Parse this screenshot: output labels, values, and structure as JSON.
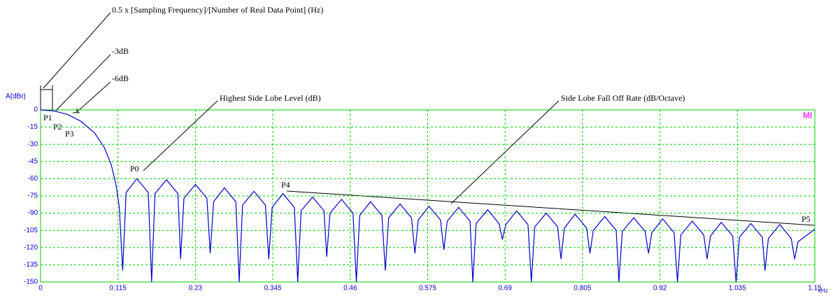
{
  "chart_data": {
    "type": "line",
    "y_label": "A(dBr)",
    "x_label": "kHz",
    "logo": "MI",
    "annotations": [
      "0.5 x [Sampling Frequency]/[Number of Real Data Point]   (Hz)",
      "-3dB",
      "-6dB",
      "Highest Side Lobe Level (dB)",
      "Side Lobe Fall Off Rate (dB/Octave)"
    ],
    "points": [
      "P0",
      "P1",
      "P2",
      "P3",
      "P4",
      "P5"
    ],
    "color": "#0000cc",
    "grid": true,
    "xlim": [
      0,
      1.15
    ],
    "xticks": [
      0,
      0.115,
      0.23,
      0.345,
      0.46,
      0.575,
      0.69,
      0.805,
      0.92,
      1.035,
      1.15
    ],
    "ylim": [
      -150,
      0
    ],
    "yticks": [
      0,
      -15,
      -30,
      -45,
      -60,
      -75,
      -90,
      -105,
      -120,
      -135,
      -150
    ],
    "x": [
      0,
      0.02,
      0.04,
      0.06,
      0.08,
      0.095,
      0.105,
      0.112,
      0.117,
      0.122,
      0.127,
      0.143,
      0.16,
      0.165,
      0.17,
      0.187,
      0.204,
      0.208,
      0.213,
      0.23,
      0.247,
      0.252,
      0.257,
      0.273,
      0.29,
      0.295,
      0.3,
      0.317,
      0.334,
      0.339,
      0.344,
      0.36,
      0.377,
      0.382,
      0.387,
      0.404,
      0.421,
      0.425,
      0.43,
      0.447,
      0.464,
      0.469,
      0.474,
      0.49,
      0.507,
      0.512,
      0.517,
      0.534,
      0.551,
      0.556,
      0.561,
      0.577,
      0.594,
      0.599,
      0.604,
      0.621,
      0.638,
      0.642,
      0.647,
      0.664,
      0.681,
      0.686,
      0.691,
      0.707,
      0.724,
      0.729,
      0.734,
      0.751,
      0.768,
      0.773,
      0.778,
      0.794,
      0.811,
      0.816,
      0.821,
      0.838,
      0.855,
      0.859,
      0.864,
      0.881,
      0.898,
      0.903,
      0.908,
      0.924,
      0.941,
      0.946,
      0.951,
      0.968,
      0.985,
      0.99,
      0.995,
      1.011,
      1.028,
      1.033,
      1.038,
      1.055,
      1.072,
      1.076,
      1.081,
      1.098,
      1.115,
      1.12,
      1.125,
      1.15
    ],
    "values": [
      0,
      -1,
      -4,
      -10,
      -20,
      -33,
      -48,
      -65,
      -85,
      -140,
      -72,
      -60,
      -72,
      -150,
      -73,
      -61,
      -73,
      -130,
      -77,
      -65,
      -77,
      -125,
      -80,
      -68,
      -80,
      -150,
      -83,
      -71,
      -83,
      -130,
      -85,
      -73,
      -85,
      -150,
      -88,
      -76,
      -88,
      -128,
      -90,
      -78,
      -90,
      -150,
      -92,
      -80,
      -92,
      -140,
      -94,
      -82,
      -94,
      -125,
      -96,
      -84,
      -96,
      -122,
      -97,
      -85,
      -97,
      -150,
      -99,
      -87,
      -99,
      -113,
      -100,
      -88,
      -100,
      -150,
      -102,
      -90,
      -102,
      -130,
      -103,
      -91,
      -103,
      -125,
      -105,
      -93,
      -105,
      -150,
      -106,
      -94,
      -106,
      -125,
      -107,
      -95,
      -107,
      -150,
      -109,
      -97,
      -109,
      -130,
      -110,
      -98,
      -110,
      -150,
      -111,
      -99,
      -111,
      -140,
      -112,
      -100,
      -112,
      -130,
      -115,
      -104
    ]
  }
}
